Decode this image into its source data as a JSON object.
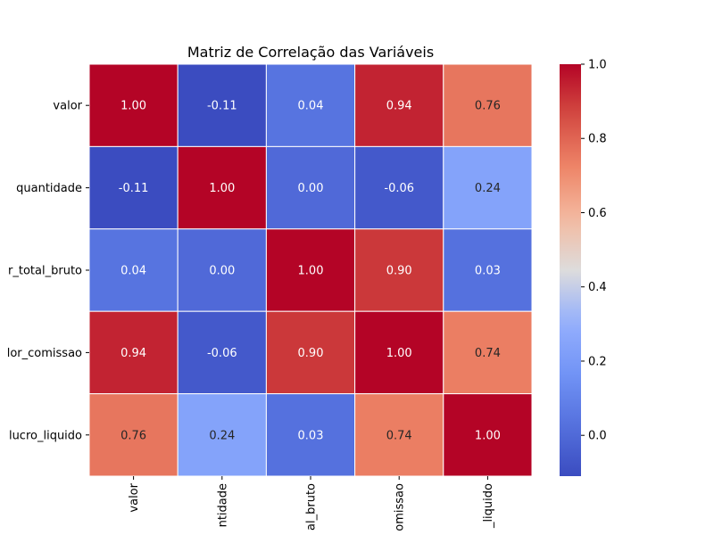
{
  "chart_data": {
    "type": "heatmap",
    "title": "Matriz de Correlação das Variáveis",
    "row_labels": [
      "valor",
      "quantidade",
      "r_total_bruto",
      "lor_comissao",
      "lucro_liquido"
    ],
    "column_labels": [
      "valor",
      "ntidade",
      "al_bruto",
      "omissao",
      "_liquido"
    ],
    "values": [
      [
        1.0,
        -0.11,
        0.04,
        0.94,
        0.76
      ],
      [
        -0.11,
        1.0,
        0.0,
        -0.06,
        0.24
      ],
      [
        0.04,
        0.0,
        1.0,
        0.9,
        0.03
      ],
      [
        0.94,
        -0.06,
        0.9,
        1.0,
        0.74
      ],
      [
        0.76,
        0.24,
        0.03,
        0.74,
        1.0
      ]
    ],
    "value_format": "2 decimals",
    "colormap": "coolwarm",
    "colorbar": {
      "min": -0.11,
      "max": 1.0,
      "ticks": [
        "0.0",
        "0.2",
        "0.4",
        "0.6",
        "0.8",
        "1.0"
      ]
    },
    "annotations": true,
    "grid": false
  }
}
